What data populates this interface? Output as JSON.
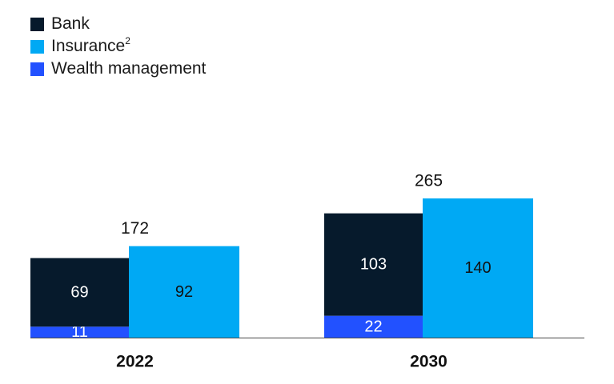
{
  "colors": {
    "bank": "#061A2C",
    "insurance": "#00A9F4",
    "wealth": "#2251FF",
    "axis": "#4a4a4a",
    "text_dark": "#111111",
    "text_light": "#ffffff"
  },
  "legend": [
    {
      "key": "bank",
      "label": "Bank",
      "sup": ""
    },
    {
      "key": "insurance",
      "label": "Insurance",
      "sup": "2"
    },
    {
      "key": "wealth",
      "label": "Wealth management",
      "sup": ""
    }
  ],
  "chart_data": {
    "type": "bar",
    "categories": [
      "2022",
      "2030"
    ],
    "totals": [
      172,
      265
    ],
    "series": [
      {
        "name": "Bank",
        "key": "bank",
        "values": [
          69,
          103
        ]
      },
      {
        "name": "Insurance",
        "key": "insurance",
        "values": [
          92,
          140
        ]
      },
      {
        "name": "Wealth management",
        "key": "wealth",
        "values": [
          11,
          22
        ]
      }
    ],
    "stacking": "Bank stacked on Wealth management; Insurance beside",
    "title": "",
    "xlabel": "",
    "ylabel": "",
    "grid": false,
    "legend_position": "top-left"
  }
}
